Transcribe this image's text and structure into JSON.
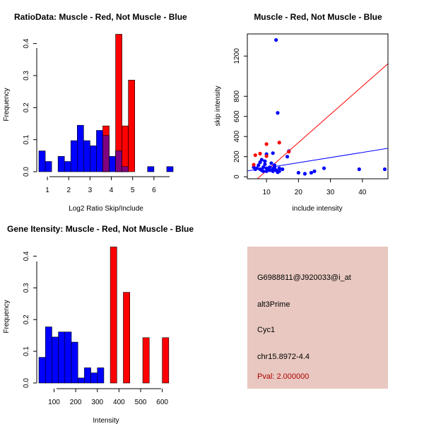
{
  "colors": {
    "muscle": "#ff0000",
    "not_muscle": "#0000ff",
    "overlap": "#800080",
    "info_bg": "#e8c8c0",
    "pval_text": "#b00000"
  },
  "chart_data": [
    {
      "id": "ratio",
      "type": "bar",
      "title": "RatioData: Muscle - Red, Not Muscle - Blue",
      "xlabel": "Log2 Ratio Skip/Include",
      "ylabel": "Frequency",
      "xlim": [
        0.5,
        7.0
      ],
      "ylim": [
        0,
        0.43
      ],
      "xticks": [
        1,
        2,
        3,
        4,
        5,
        6
      ],
      "yticks": [
        0.0,
        0.1,
        0.2,
        0.3,
        0.4
      ],
      "series": [
        {
          "name": "Not Muscle",
          "color": "blue",
          "bins": [
            [
              0.6,
              0.9,
              0.065
            ],
            [
              0.9,
              1.2,
              0.032
            ],
            [
              1.5,
              1.8,
              0.048
            ],
            [
              1.8,
              2.1,
              0.032
            ],
            [
              2.1,
              2.4,
              0.097
            ],
            [
              2.4,
              2.7,
              0.145
            ],
            [
              2.7,
              3.0,
              0.097
            ],
            [
              3.0,
              3.3,
              0.081
            ],
            [
              3.3,
              3.6,
              0.129
            ],
            [
              3.6,
              3.9,
              0.113
            ],
            [
              3.9,
              4.2,
              0.048
            ],
            [
              4.2,
              4.5,
              0.065
            ],
            [
              4.5,
              4.8,
              0.016
            ],
            [
              5.7,
              6.0,
              0.016
            ],
            [
              6.6,
              6.9,
              0.016
            ]
          ]
        },
        {
          "name": "Muscle",
          "color": "red",
          "bins": [
            [
              3.6,
              3.9,
              0.143
            ],
            [
              4.2,
              4.5,
              0.429
            ],
            [
              4.5,
              4.8,
              0.143
            ],
            [
              4.8,
              5.1,
              0.286
            ]
          ]
        }
      ]
    },
    {
      "id": "scatter",
      "type": "scatter",
      "title": "Muscle - Red, Not Muscle - Blue",
      "xlabel": "include intensity",
      "ylabel": "skip intensity",
      "xlim": [
        4.0,
        48.0
      ],
      "ylim": [
        -20,
        1420
      ],
      "xticks": [
        10,
        20,
        30,
        40
      ],
      "yticks": [
        0,
        200,
        400,
        600,
        800,
        1200
      ],
      "lines": [
        {
          "color": "red",
          "intercept": -220,
          "slope": 28.0
        },
        {
          "color": "blue",
          "intercept": 38,
          "slope": 5.1
        }
      ],
      "series": [
        {
          "name": "Not Muscle",
          "color": "blue",
          "points": [
            [
              13,
              1360
            ],
            [
              13.5,
              635
            ],
            [
              17,
              255
            ],
            [
              16.5,
              200
            ],
            [
              12,
              235
            ],
            [
              10,
              225
            ],
            [
              28,
              85
            ],
            [
              39,
              75
            ],
            [
              47,
              75
            ],
            [
              20,
              40
            ],
            [
              22,
              30
            ],
            [
              24,
              40
            ],
            [
              25,
              55
            ],
            [
              6,
              95
            ],
            [
              6.5,
              75
            ],
            [
              7,
              85
            ],
            [
              7.5,
              115
            ],
            [
              8,
              75
            ],
            [
              8,
              145
            ],
            [
              8.5,
              65
            ],
            [
              9,
              95
            ],
            [
              9,
              55
            ],
            [
              9.5,
              125
            ],
            [
              10,
              85
            ],
            [
              10,
              55
            ],
            [
              10.5,
              75
            ],
            [
              11,
              65
            ],
            [
              11,
              95
            ],
            [
              12,
              75
            ],
            [
              12,
              55
            ],
            [
              12.5,
              115
            ],
            [
              13,
              65
            ],
            [
              13.5,
              45
            ],
            [
              14,
              85
            ],
            [
              14,
              55
            ],
            [
              15,
              75
            ],
            [
              8.5,
              170
            ],
            [
              9.5,
              155
            ],
            [
              11.5,
              135
            ],
            [
              12.5,
              95
            ]
          ]
        },
        {
          "name": "Muscle",
          "color": "red",
          "points": [
            [
              6.5,
              215
            ],
            [
              8,
              230
            ],
            [
              10,
              325
            ],
            [
              14,
              340
            ],
            [
              17,
              250
            ],
            [
              10,
              205
            ],
            [
              6,
              120
            ]
          ]
        }
      ]
    },
    {
      "id": "intensity",
      "type": "bar",
      "title": "Gene Itensity: Muscle - Red, Not Muscle - Blue",
      "xlabel": "Intensity",
      "ylabel": "Frequency",
      "xlim": [
        20,
        660
      ],
      "ylim": [
        0,
        0.43
      ],
      "xticks": [
        100,
        200,
        300,
        400,
        500,
        600
      ],
      "yticks": [
        0.0,
        0.1,
        0.2,
        0.3,
        0.4
      ],
      "series": [
        {
          "name": "Not Muscle",
          "color": "blue",
          "bins": [
            [
              30,
              60,
              0.081
            ],
            [
              60,
              90,
              0.177
            ],
            [
              90,
              120,
              0.145
            ],
            [
              120,
              150,
              0.161
            ],
            [
              150,
              180,
              0.161
            ],
            [
              180,
              210,
              0.129
            ],
            [
              210,
              240,
              0.016
            ],
            [
              240,
              270,
              0.048
            ],
            [
              270,
              300,
              0.032
            ],
            [
              300,
              330,
              0.048
            ]
          ]
        },
        {
          "name": "Muscle",
          "color": "red",
          "bins": [
            [
              360,
              390,
              0.429
            ],
            [
              420,
              450,
              0.286
            ],
            [
              510,
              540,
              0.143
            ],
            [
              600,
              630,
              0.143
            ]
          ]
        }
      ]
    }
  ],
  "info": {
    "probe_id": "G6988811@J920033@i_at",
    "event_type": "alt3Prime",
    "gene": "Cyc1",
    "location": "chr15.8972-4.4",
    "pval": "Pval: 2.000000"
  }
}
